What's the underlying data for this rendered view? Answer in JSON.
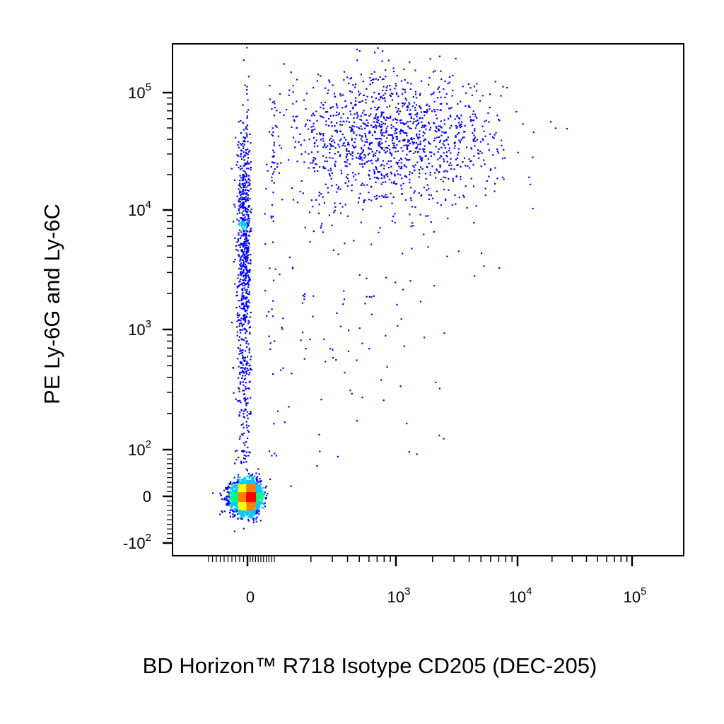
{
  "chart_data": {
    "type": "scatter",
    "style": "flow-cytometry pseudocolor density plot",
    "title": "",
    "xlabel": "BD Horizon™ R718 Isotype CD205 (DEC-205)",
    "ylabel": "PE  Ly-6G and Ly-6C",
    "x_scale": "biexponential",
    "y_scale": "biexponential",
    "x_ticks": [
      {
        "value": 0,
        "base": "0",
        "exp": ""
      },
      {
        "value": 1000,
        "base": "10",
        "exp": "3"
      },
      {
        "value": 10000,
        "base": "10",
        "exp": "4"
      },
      {
        "value": 100000,
        "base": "10",
        "exp": "5"
      }
    ],
    "y_ticks": [
      {
        "value": 100000,
        "base": "10",
        "exp": "5"
      },
      {
        "value": 10000,
        "base": "10",
        "exp": "4"
      },
      {
        "value": 1000,
        "base": "10",
        "exp": "3"
      },
      {
        "value": 100,
        "base": "10",
        "exp": "2"
      },
      {
        "value": 0,
        "base": "0",
        "exp": ""
      },
      {
        "value": -100,
        "base": "-10",
        "exp": "2"
      }
    ],
    "density_colors": [
      "#0000ff",
      "#00c8ff",
      "#00ff80",
      "#ffff00",
      "#ff8000",
      "#ff0000"
    ],
    "populations": [
      {
        "center_x": 0,
        "center_y": 0,
        "spread_x_decades": 0.45,
        "spread_y_decades": 0.35,
        "relative_count": 0.55,
        "peak_density": "high"
      },
      {
        "center_x": 900,
        "center_y": 40000,
        "spread_x_decades": 0.45,
        "spread_y_decades": 0.28,
        "relative_count": 0.26,
        "peak_density": "medium"
      },
      {
        "center_x": -10,
        "center_y": 8000,
        "spread_x_decades": 0.18,
        "spread_y_decades": 0.45,
        "relative_count": 0.1,
        "peak_density": "low"
      },
      {
        "center_x": -10,
        "center_y": 700,
        "spread_x_decades": 0.2,
        "spread_y_decades": 0.7,
        "relative_count": 0.06,
        "peak_density": "low"
      },
      {
        "center_x": 300,
        "center_y": 2000,
        "spread_x_decades": 0.5,
        "spread_y_decades": 0.8,
        "relative_count": 0.03,
        "peak_density": "sparse"
      }
    ]
  }
}
